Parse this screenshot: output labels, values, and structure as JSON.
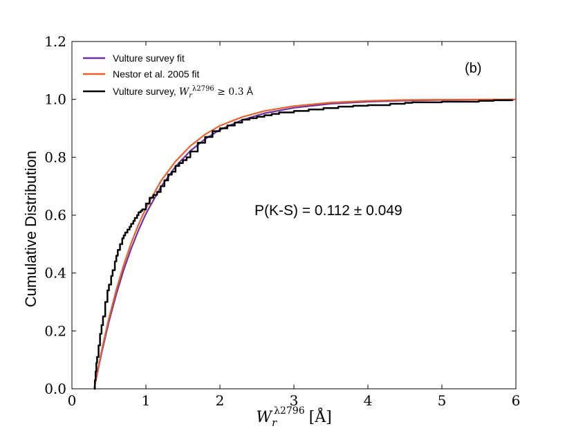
{
  "chart_data": {
    "type": "line",
    "panel_label": "(b)",
    "ylabel": "Cumulative Distribution",
    "xlabel_main": "W",
    "xlabel_sub": "r",
    "xlabel_sup": "λ2796",
    "xlabel_unit": "[Å]",
    "xlim": [
      0,
      6
    ],
    "ylim": [
      0,
      1.2
    ],
    "x_ticks": [
      0,
      1,
      2,
      3,
      4,
      5,
      6
    ],
    "x_tick_labels": [
      "0",
      "1",
      "2",
      "3",
      "4",
      "5",
      "6"
    ],
    "y_ticks": [
      0.0,
      0.2,
      0.4,
      0.6,
      0.8,
      1.0,
      1.2
    ],
    "y_tick_labels": [
      "0.0",
      "0.2",
      "0.4",
      "0.6",
      "0.8",
      "1.0",
      "1.2"
    ],
    "annotation": "P(K-S) = 0.112 ± 0.049",
    "legend_position": "top-left",
    "series": [
      {
        "name": "Vulture survey fit",
        "legend_label": "Vulture survey fit",
        "color": "#7030a0",
        "style": "smooth",
        "x": [
          0.3,
          0.4,
          0.5,
          0.6,
          0.7,
          0.8,
          0.9,
          1.0,
          1.2,
          1.4,
          1.6,
          1.8,
          2.0,
          2.3,
          2.6,
          3.0,
          3.5,
          4.0,
          4.5,
          5.0,
          5.5,
          6.0
        ],
        "y": [
          0.0,
          0.123,
          0.232,
          0.327,
          0.411,
          0.484,
          0.548,
          0.605,
          0.697,
          0.768,
          0.822,
          0.863,
          0.895,
          0.929,
          0.952,
          0.971,
          0.985,
          0.992,
          0.996,
          0.998,
          0.999,
          0.9995
        ]
      },
      {
        "name": "Nestor et al. 2005 fit",
        "legend_label": "Nestor et al. 2005 fit",
        "color": "#e8602c",
        "style": "smooth",
        "x": [
          0.3,
          0.4,
          0.5,
          0.6,
          0.7,
          0.8,
          0.9,
          1.0,
          1.2,
          1.4,
          1.6,
          1.8,
          2.0,
          2.3,
          2.6,
          3.0,
          3.5,
          4.0,
          4.5,
          5.0,
          5.5,
          6.0
        ],
        "y": [
          0.0,
          0.13,
          0.244,
          0.342,
          0.428,
          0.503,
          0.568,
          0.624,
          0.717,
          0.786,
          0.839,
          0.879,
          0.909,
          0.939,
          0.96,
          0.977,
          0.989,
          0.995,
          0.998,
          0.999,
          0.9995,
          1.0
        ]
      },
      {
        "name": "Vulture survey data",
        "legend_label": "Vulture survey, ",
        "legend_math_main": "W",
        "legend_math_sub": "r",
        "legend_math_sup": "λ2796",
        "legend_math_rest": " ≥ 0.3",
        "legend_unit": "Å",
        "color": "#000000",
        "style": "step",
        "x": [
          0.3,
          0.31,
          0.32,
          0.33,
          0.34,
          0.36,
          0.38,
          0.4,
          0.42,
          0.45,
          0.48,
          0.5,
          0.53,
          0.55,
          0.58,
          0.6,
          0.62,
          0.65,
          0.68,
          0.7,
          0.72,
          0.75,
          0.78,
          0.8,
          0.83,
          0.85,
          0.88,
          0.9,
          0.93,
          0.95,
          1.0,
          1.05,
          1.1,
          1.15,
          1.2,
          1.25,
          1.3,
          1.35,
          1.4,
          1.45,
          1.5,
          1.55,
          1.6,
          1.7,
          1.8,
          1.9,
          2.0,
          2.1,
          2.2,
          2.3,
          2.4,
          2.5,
          2.6,
          2.7,
          2.8,
          3.0,
          3.2,
          3.4,
          3.6,
          3.8,
          4.0,
          4.3,
          4.5,
          4.6,
          5.0,
          5.5,
          5.7,
          5.95
        ],
        "y": [
          0.0,
          0.03,
          0.06,
          0.09,
          0.11,
          0.15,
          0.19,
          0.22,
          0.25,
          0.3,
          0.34,
          0.36,
          0.39,
          0.41,
          0.44,
          0.46,
          0.48,
          0.5,
          0.52,
          0.53,
          0.54,
          0.55,
          0.56,
          0.57,
          0.58,
          0.59,
          0.6,
          0.61,
          0.615,
          0.62,
          0.64,
          0.66,
          0.67,
          0.68,
          0.7,
          0.72,
          0.74,
          0.75,
          0.77,
          0.78,
          0.79,
          0.8,
          0.82,
          0.85,
          0.87,
          0.89,
          0.9,
          0.91,
          0.92,
          0.93,
          0.935,
          0.94,
          0.945,
          0.95,
          0.955,
          0.96,
          0.965,
          0.97,
          0.975,
          0.978,
          0.98,
          0.985,
          0.988,
          0.99,
          0.992,
          0.995,
          0.997,
          1.0
        ]
      }
    ]
  }
}
